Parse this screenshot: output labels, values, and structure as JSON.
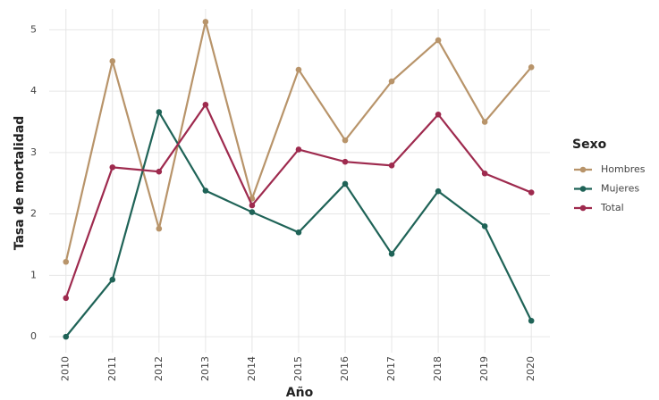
{
  "chart_data": {
    "type": "line",
    "x_label": "Año",
    "y_label": "Tasa de mortalidad",
    "legend_title": "Sexo",
    "x": [
      2010,
      2011,
      2012,
      2013,
      2014,
      2015,
      2016,
      2017,
      2018,
      2019,
      2020
    ],
    "series": [
      {
        "name": "Hombres",
        "color": "#b8946a",
        "values": [
          1.22,
          4.49,
          1.76,
          5.13,
          2.25,
          4.35,
          3.2,
          4.16,
          4.83,
          3.5,
          4.39
        ]
      },
      {
        "name": "Mujeres",
        "color": "#1f6357",
        "values": [
          0,
          0.93,
          3.66,
          2.38,
          2.03,
          1.7,
          2.49,
          1.35,
          2.37,
          1.8,
          0.26
        ]
      },
      {
        "name": "Total",
        "color": "#9e2a4e",
        "values": [
          0.63,
          2.76,
          2.69,
          3.78,
          2.14,
          3.05,
          2.85,
          2.79,
          3.62,
          2.66,
          2.35
        ]
      }
    ],
    "xlim": [
      2009.64,
      2020.4
    ],
    "xticks": [
      2010,
      2011,
      2012,
      2013,
      2014,
      2015,
      2016,
      2017,
      2018,
      2019,
      2020
    ],
    "ylim": [
      -0.26,
      5.34
    ],
    "yticks": [
      0,
      1,
      2,
      3,
      4,
      5
    ],
    "grid": true,
    "legend": "right"
  }
}
